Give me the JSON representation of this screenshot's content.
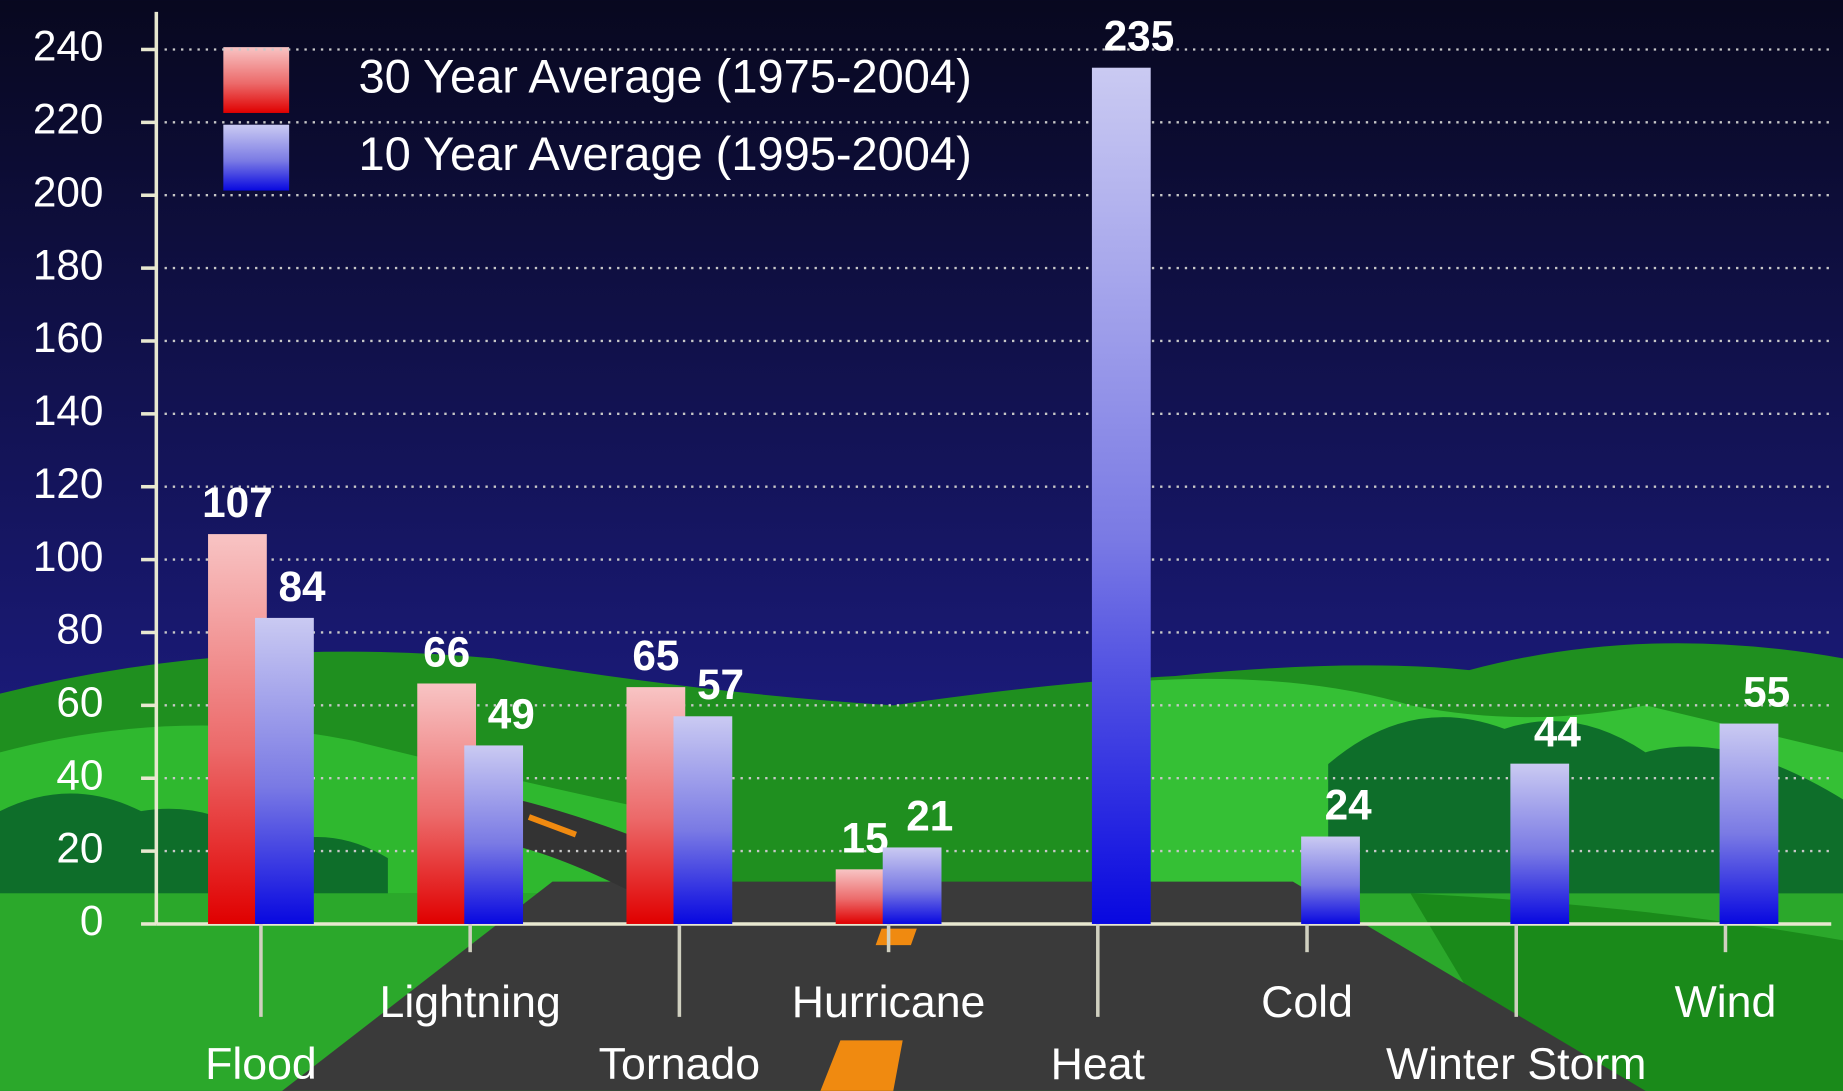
{
  "chart_data": {
    "type": "bar",
    "categories": [
      "Flood",
      "Lightning",
      "Tornado",
      "Hurricane",
      "Heat",
      "Cold",
      "Winter Storm",
      "Wind"
    ],
    "series": [
      {
        "name": "30 Year Average (1975-2004)",
        "color": "#e01010",
        "values": [
          107,
          66,
          65,
          15,
          null,
          null,
          null,
          null
        ]
      },
      {
        "name": "10 Year Average (1995-2004)",
        "color": "#1a1ae0",
        "values": [
          84,
          49,
          57,
          21,
          235,
          24,
          44,
          55
        ]
      }
    ],
    "ylim": [
      0,
      250
    ],
    "yticks": [
      0,
      20,
      40,
      60,
      80,
      100,
      120,
      140,
      160,
      180,
      200,
      220,
      240
    ],
    "grid": true,
    "legend": "top-left"
  }
}
